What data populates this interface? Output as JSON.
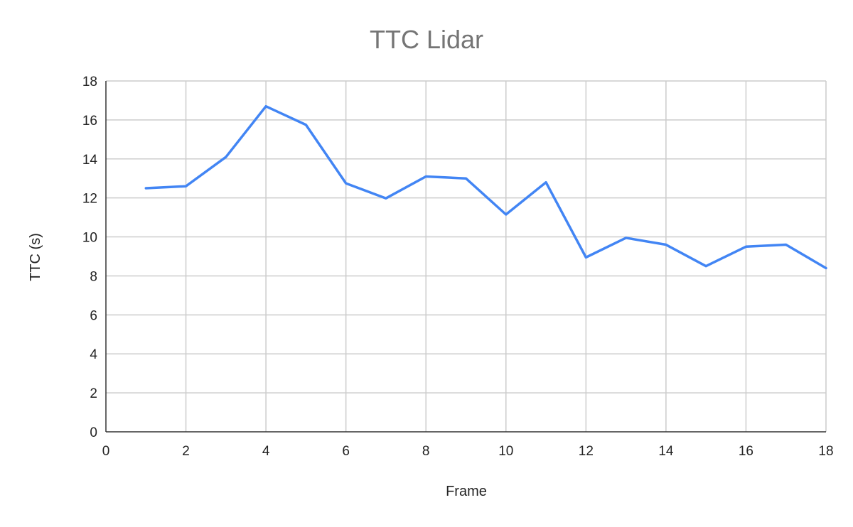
{
  "chart_data": {
    "type": "line",
    "title": "TTC Lidar",
    "xlabel": "Frame",
    "ylabel": "TTC (s)",
    "xlim": [
      0,
      18
    ],
    "ylim": [
      0,
      18
    ],
    "x_ticks": [
      0,
      2,
      4,
      6,
      8,
      10,
      12,
      14,
      16,
      18
    ],
    "y_ticks": [
      0,
      2,
      4,
      6,
      8,
      10,
      12,
      14,
      16,
      18
    ],
    "grid": true,
    "series": [
      {
        "color": "#4285f4",
        "x": [
          1,
          2,
          3,
          4,
          5,
          6,
          7,
          8,
          9,
          10,
          11,
          12,
          13,
          14,
          15,
          16,
          17,
          18
        ],
        "y": [
          12.5,
          12.6,
          14.1,
          16.7,
          15.75,
          12.75,
          11.98,
          13.1,
          13.0,
          11.15,
          12.8,
          8.95,
          9.95,
          9.6,
          8.5,
          9.5,
          9.6,
          8.4
        ]
      }
    ]
  }
}
